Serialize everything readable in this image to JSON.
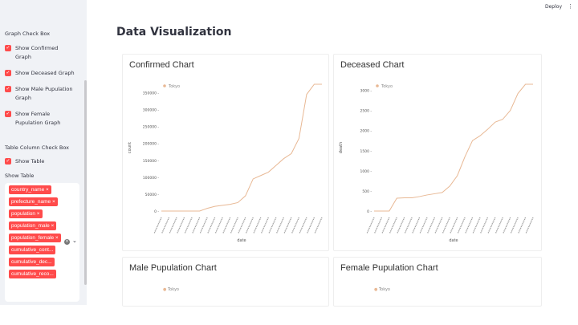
{
  "header": {
    "deploy_label": "Deploy",
    "menu_icon": "kebab-icon"
  },
  "sidebar": {
    "graph_heading": "Graph Check Box",
    "graph_checks": [
      "Show Confirmed Graph",
      "Show Deceased Graph",
      "Show Male Pupulation Graph",
      "Show Female Pupulation Graph"
    ],
    "table_heading": "Table Column Check Box",
    "table_check": "Show Table",
    "multiselect_label": "Show Table",
    "tags": [
      "country_name",
      "prefecture_name",
      "population",
      "population_male",
      "population_female",
      "cumulative_cont...",
      "cumulative_dec...",
      "cumulative_reco..."
    ]
  },
  "main": {
    "title": "Data Visualization"
  },
  "colors": {
    "accent": "#ff4b4b",
    "line": "#e8b894",
    "sidebar_bg": "#f0f2f6"
  },
  "chart_data": [
    {
      "type": "line",
      "title": "Confirmed Chart",
      "legend": [
        "Tokyo"
      ],
      "xlabel": "date",
      "ylabel": "count",
      "ylim": [
        0,
        375000
      ],
      "yticks": [
        0,
        50000,
        100000,
        150000,
        200000,
        250000,
        300000,
        350000
      ],
      "series": [
        {
          "name": "Tokyo",
          "values": [
            0,
            0,
            0,
            0,
            0,
            0,
            8000,
            14000,
            17000,
            20000,
            25000,
            45000,
            95000,
            105000,
            115000,
            135000,
            155000,
            170000,
            215000,
            345000,
            375000,
            375000
          ]
        }
      ]
    },
    {
      "type": "line",
      "title": "Deceased Chart",
      "legend": [
        "Tokyo"
      ],
      "xlabel": "date",
      "ylabel": "death",
      "ylim": [
        0,
        3150
      ],
      "yticks": [
        0,
        500,
        1000,
        1500,
        2000,
        2500,
        3000
      ],
      "series": [
        {
          "name": "Tokyo",
          "values": [
            0,
            0,
            0,
            320,
            330,
            330,
            360,
            400,
            430,
            460,
            620,
            880,
            1350,
            1750,
            1870,
            2030,
            2210,
            2280,
            2500,
            2920,
            3150,
            3150
          ]
        }
      ]
    },
    {
      "type": "line",
      "title": "Male Pupulation Chart",
      "legend": [
        "Tokyo"
      ]
    },
    {
      "type": "line",
      "title": "Female Pupulation Chart",
      "legend": [
        "Tokyo"
      ]
    }
  ]
}
